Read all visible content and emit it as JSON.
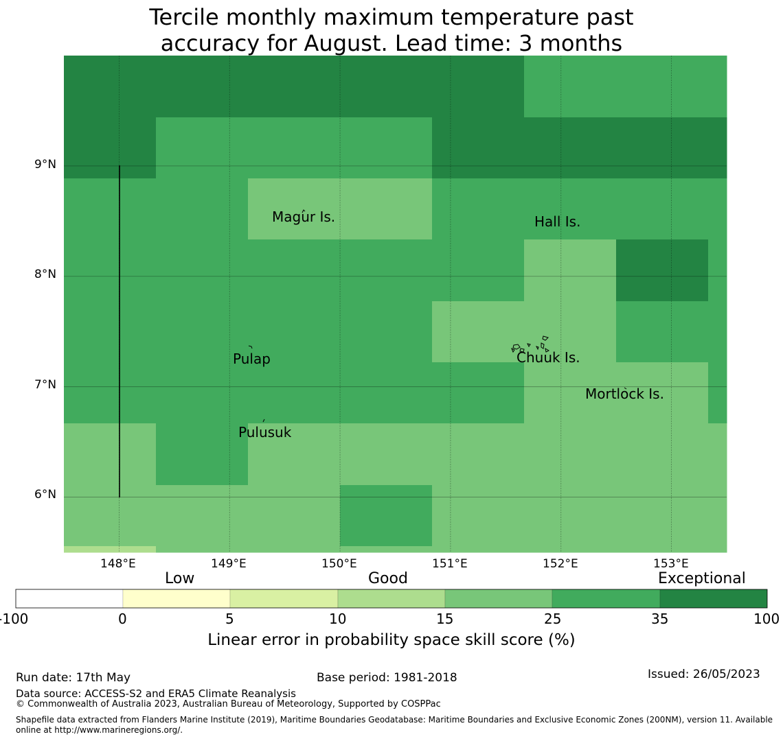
{
  "title_line1": "Tercile monthly maximum temperature past",
  "title_line2": "accuracy for August. Lead time: 3 months",
  "map": {
    "lon_range": [
      147.5,
      153.5
    ],
    "lat_range": [
      5.5,
      10.0
    ],
    "x_ticks": [
      {
        "lon": 148,
        "label": "148°E"
      },
      {
        "lon": 149,
        "label": "149°E"
      },
      {
        "lon": 150,
        "label": "150°E"
      },
      {
        "lon": 151,
        "label": "151°E"
      },
      {
        "lon": 152,
        "label": "152°E"
      },
      {
        "lon": 153,
        "label": "153°E"
      }
    ],
    "y_ticks": [
      {
        "lat": 9,
        "label": "9°N"
      },
      {
        "lat": 8,
        "label": "8°N"
      },
      {
        "lat": 7,
        "label": "7°N"
      },
      {
        "lat": 6,
        "label": "6°N"
      }
    ],
    "grid_lines": true,
    "grid_cells": {
      "note_rows": "rows from north to south, columns from west to east; values are colour-bin indices 0-6 matching the colour bar",
      "rows": [
        [
          6,
          6,
          6,
          6,
          6,
          5,
          5,
          5
        ],
        [
          6,
          5,
          5,
          5,
          6,
          6,
          6,
          6
        ],
        [
          5,
          5,
          4,
          4,
          5,
          5,
          5,
          5
        ],
        [
          5,
          5,
          5,
          5,
          5,
          4,
          6,
          5
        ],
        [
          5,
          5,
          5,
          5,
          4,
          4,
          5,
          5
        ],
        [
          5,
          5,
          5,
          5,
          5,
          4,
          4,
          5
        ],
        [
          4,
          5,
          4,
          4,
          4,
          4,
          4,
          4
        ],
        [
          4,
          4,
          4,
          5,
          4,
          4,
          4,
          4
        ],
        [
          3,
          4,
          4,
          4,
          4,
          4,
          4,
          4
        ]
      ]
    },
    "places": [
      {
        "name": "Magur Is.",
        "lon": 149.58,
        "lat": 8.58
      },
      {
        "name": "Hall Is.",
        "lon": 151.78,
        "lat": 8.5
      },
      {
        "name": "Pulap",
        "lon": 149.18,
        "lat": 7.3
      },
      {
        "name": "Chuuk Is.",
        "lon": 151.75,
        "lat": 7.32
      },
      {
        "name": "Mortlock Is.",
        "lon": 152.55,
        "lat": 6.97
      },
      {
        "name": "Pulusuk",
        "lon": 149.3,
        "lat": 6.66
      }
    ]
  },
  "colorbar": {
    "categories": [
      {
        "label": "Low",
        "at": 1.5
      },
      {
        "label": "Good",
        "at": 3.5
      },
      {
        "label": "Exceptional",
        "at": 6.3
      }
    ],
    "bins": [
      {
        "from": -100,
        "to": 0,
        "color": "#ffffff"
      },
      {
        "from": 0,
        "to": 5,
        "color": "#ffffcc"
      },
      {
        "from": 5,
        "to": 10,
        "color": "#d9f0a3"
      },
      {
        "from": 10,
        "to": 15,
        "color": "#addd8e"
      },
      {
        "from": 15,
        "to": 25,
        "color": "#78c679"
      },
      {
        "from": 25,
        "to": 35,
        "color": "#41ab5d"
      },
      {
        "from": 35,
        "to": 100,
        "color": "#238443"
      }
    ],
    "tick_labels": [
      "-100",
      "0",
      "5",
      "10",
      "15",
      "25",
      "35",
      "100"
    ],
    "label": "Linear error in probability space skill score (%)"
  },
  "footer": {
    "run_date": "Run date: 17th May",
    "base_period": "Base period: 1981-2018",
    "issued": "Issued: 26/05/2023",
    "data_source": "Data source: ACCESS-S2 and ERA5 Climate Reanalysis",
    "copyright": "© Commonwealth of Australia 2023, Australian Bureau of Meteorology, Supported by COSPPac",
    "shapefile_line1": "Shapefile data extracted from Flanders Marine Institute (2019), Maritime Boundaries Geodatabase: Maritime Boundaries and Exclusive Economic Zones (200NM), version 11. Available",
    "shapefile_line2": "online at http://www.marineregions.org/."
  }
}
